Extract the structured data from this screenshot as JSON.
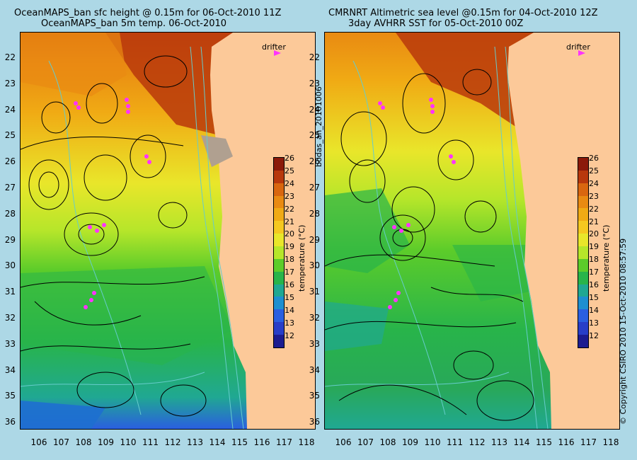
{
  "panels": [
    {
      "title_line1": "OceanMAPS_ban sfc height @ 0.15m for 06-Oct-2010 11Z",
      "title_line2": "OceanMAPS_ban 5m temp. 06-Oct-2010"
    },
    {
      "title_line1": "CMRNRT Altimetric sea level  @0.15m  for 04-Oct-2010 12Z",
      "title_line2": "3day AVHRR SST for 05-Oct-2010 00Z"
    }
  ],
  "lat_ticks": [
    "22",
    "23",
    "24",
    "25",
    "26",
    "27",
    "28",
    "29",
    "30",
    "31",
    "32",
    "33",
    "34",
    "35",
    "36"
  ],
  "lon_ticks": [
    "106",
    "107",
    "108",
    "109",
    "110",
    "111",
    "112",
    "113",
    "114",
    "115",
    "116",
    "117",
    "118"
  ],
  "legend": {
    "drifter_label": "drifter"
  },
  "colorbar": {
    "title": "temperature (°C)",
    "ticks": [
      "26",
      "25",
      "24",
      "23",
      "22",
      "21",
      "20",
      "19",
      "18",
      "17",
      "16",
      "15",
      "14",
      "13",
      "12"
    ],
    "colors": [
      "#8b1a0a",
      "#b8380c",
      "#d9660f",
      "#e98a12",
      "#f0aa14",
      "#f5c820",
      "#e9e62a",
      "#b6e62a",
      "#5ccc2a",
      "#28b44a",
      "#20a892",
      "#1e8fd0",
      "#2a5fe0",
      "#283ec8",
      "#1c1c90"
    ]
  },
  "side_labels": {
    "run_id": "bodas_an_20101006",
    "copyright": "© Copyright CSIRO 2010    15-Oct-2010 08:57:59"
  },
  "colors": {
    "background": "#add8e6",
    "land": "#fcc999",
    "contour": "#000000",
    "isobath": "#66cccc",
    "drifter": "#ff33ff"
  }
}
